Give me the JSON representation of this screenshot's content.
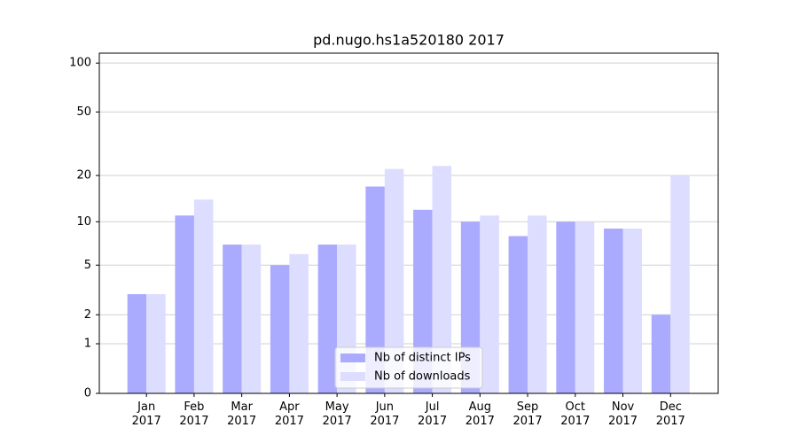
{
  "chart_data": {
    "type": "bar",
    "title": "pd.nugo.hs1a520180 2017",
    "categories": [
      "Jan\n2017",
      "Feb\n2017",
      "Mar\n2017",
      "Apr\n2017",
      "May\n2017",
      "Jun\n2017",
      "Jul\n2017",
      "Aug\n2017",
      "Sep\n2017",
      "Oct\n2017",
      "Nov\n2017",
      "Dec\n2017"
    ],
    "series": [
      {
        "name": "Nb of distinct IPs",
        "color": "#aaaaff",
        "values": [
          3,
          11,
          7,
          5,
          7,
          17,
          12,
          10,
          8,
          10,
          9,
          2
        ]
      },
      {
        "name": "Nb of downloads",
        "color": "#ddddff",
        "values": [
          3,
          14,
          7,
          6,
          7,
          22,
          23,
          11,
          11,
          10,
          9,
          20
        ]
      }
    ],
    "yscale": "log1p",
    "ylim": [
      0,
      115
    ],
    "yticks": [
      0,
      1,
      2,
      5,
      10,
      20,
      50,
      100
    ],
    "grid": true,
    "legend": "lower center"
  }
}
